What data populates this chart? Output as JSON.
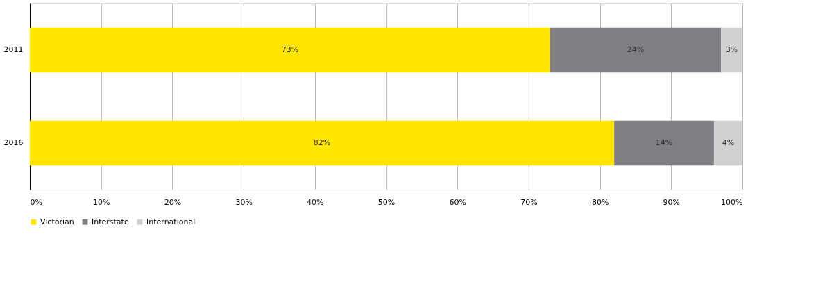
{
  "chart_data": {
    "type": "bar",
    "orientation": "horizontal",
    "stacked": true,
    "categories": [
      "2011",
      "2016"
    ],
    "series": [
      {
        "name": "Victorian",
        "color": "#ffe600",
        "values": [
          73,
          82
        ],
        "value_labels": [
          "73%",
          "82%"
        ]
      },
      {
        "name": "Interstate",
        "color": "#7f7e82",
        "values": [
          24,
          14
        ],
        "value_labels": [
          "24%",
          "14%"
        ]
      },
      {
        "name": "International",
        "color": "#d0d0d0",
        "values": [
          3,
          4
        ],
        "value_labels": [
          "3%",
          "4%"
        ]
      }
    ],
    "xlim": [
      0,
      100
    ],
    "xticks": [
      {
        "value": 0,
        "label": "0%"
      },
      {
        "value": 10,
        "label": "10%"
      },
      {
        "value": 20,
        "label": "20%"
      },
      {
        "value": 30,
        "label": "30%"
      },
      {
        "value": 40,
        "label": "40%"
      },
      {
        "value": 50,
        "label": "50%"
      },
      {
        "value": 60,
        "label": "60%"
      },
      {
        "value": 70,
        "label": "70%"
      },
      {
        "value": 80,
        "label": "80%"
      },
      {
        "value": 90,
        "label": "90%"
      },
      {
        "value": 100,
        "label": "100%"
      }
    ],
    "grid": "x",
    "legend": "bottom"
  }
}
